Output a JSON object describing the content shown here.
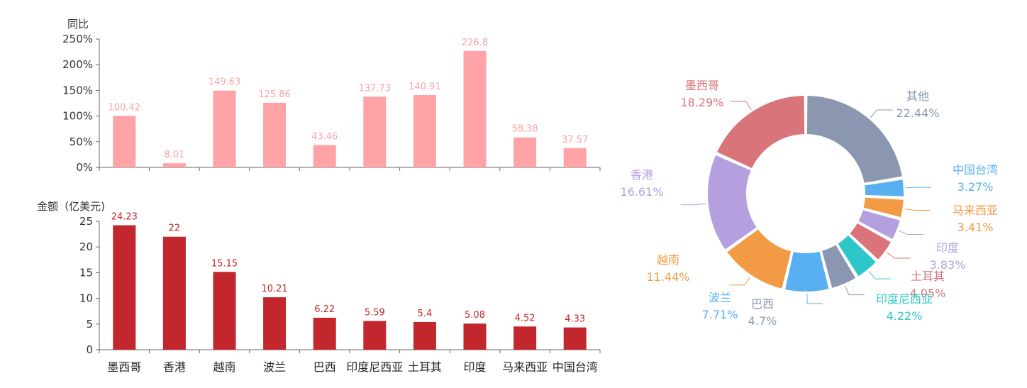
{
  "chart_data": [
    {
      "type": "bar",
      "ylabel": "同比",
      "ylim": [
        0,
        250
      ],
      "yticks": [
        "0%",
        "50%",
        "100%",
        "150%",
        "200%",
        "250%"
      ],
      "categories": [
        "墨西哥",
        "香港",
        "越南",
        "波兰",
        "巴西",
        "印度尼西亚",
        "土耳其",
        "印度",
        "马来西亚",
        "中国台湾"
      ],
      "values": [
        100.42,
        8.01,
        149.63,
        125.86,
        43.46,
        137.73,
        140.91,
        226.8,
        58.38,
        37.57
      ],
      "labels": [
        "100.42",
        "8.01",
        "149.63",
        "125.86",
        "43.46",
        "137.73",
        "140.91",
        "226.8",
        "58.38",
        "37.57"
      ],
      "color": "#ffa3a6",
      "label_color": "#f7a4a6",
      "grid": false
    },
    {
      "type": "bar",
      "ylabel": "金额（亿美元)",
      "ylim": [
        0,
        25
      ],
      "yticks": [
        "0",
        "5",
        "10",
        "15",
        "20",
        "25"
      ],
      "categories": [
        "墨西哥",
        "香港",
        "越南",
        "波兰",
        "巴西",
        "印度尼西亚",
        "土耳其",
        "印度",
        "马来西亚",
        "中国台湾"
      ],
      "values": [
        24.23,
        22,
        15.15,
        10.21,
        6.22,
        5.59,
        5.4,
        5.08,
        4.52,
        4.33
      ],
      "labels": [
        "24.23",
        "22",
        "15.15",
        "10.21",
        "6.22",
        "5.59",
        "5.4",
        "5.08",
        "4.52",
        "4.33"
      ],
      "color": "#c1272d",
      "label_color": "#c1272d",
      "grid": false
    },
    {
      "type": "pie",
      "variant": "donut",
      "slices": [
        {
          "name": "其他",
          "pct": "22.44%",
          "value": 22.44,
          "color": "#8b97b0"
        },
        {
          "name": "中国台湾",
          "pct": "3.27%",
          "value": 3.27,
          "color": "#58b0f0"
        },
        {
          "name": "马来西亚",
          "pct": "3.41%",
          "value": 3.41,
          "color": "#f39a45"
        },
        {
          "name": "印度",
          "pct": "3.83%",
          "value": 3.83,
          "color": "#b4a0df"
        },
        {
          "name": "土耳其",
          "pct": "4.05%",
          "value": 4.05,
          "color": "#d9747a"
        },
        {
          "name": "印度尼西亚",
          "pct": "4.22%",
          "value": 4.22,
          "color": "#2ec7c9"
        },
        {
          "name": "巴西",
          "pct": "4.7%",
          "value": 4.7,
          "color": "#8b97b0"
        },
        {
          "name": "波兰",
          "pct": "7.71%",
          "value": 7.71,
          "color": "#58b0f0"
        },
        {
          "name": "越南",
          "pct": "11.44%",
          "value": 11.44,
          "color": "#f39a45"
        },
        {
          "name": "香港",
          "pct": "16.61%",
          "value": 16.61,
          "color": "#b4a0df"
        },
        {
          "name": "墨西哥",
          "pct": "18.29%",
          "value": 18.29,
          "color": "#d9747a"
        }
      ]
    }
  ]
}
